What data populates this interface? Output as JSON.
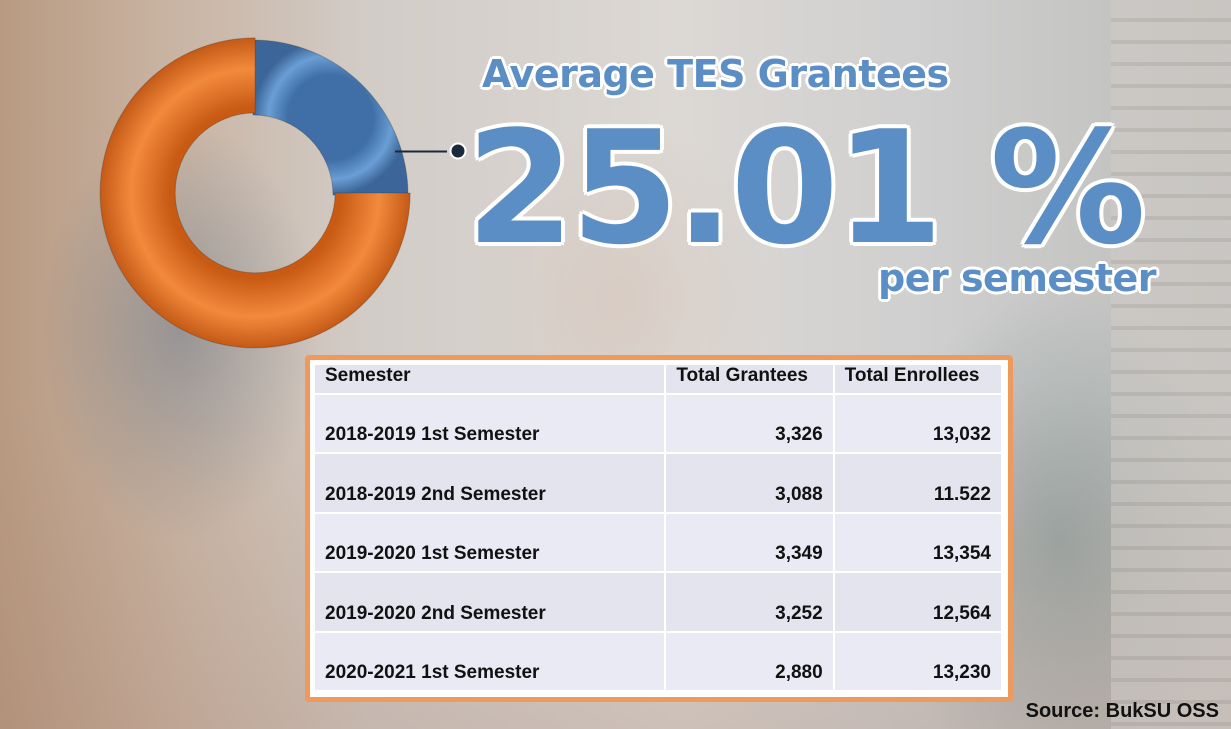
{
  "header": {
    "title": "Average TES Grantees",
    "percent": "25.01 %",
    "subtitle": "per semester"
  },
  "colors": {
    "grantees": "#5b8ec5",
    "non_grantees": "#ef7a2e",
    "table_border": "#ee9a5d"
  },
  "chart_data": [
    {
      "type": "pie",
      "variant": "donut",
      "slices": [
        {
          "value": 25.01,
          "color": "#5b8ec5"
        },
        {
          "value": 74.99,
          "color": "#ef7a2e"
        }
      ]
    },
    {
      "type": "table",
      "columns": [
        "Semester",
        "Total Grantees",
        "Total Enrollees"
      ],
      "rows": [
        [
          "2018-2019 1st Semester",
          "3,326",
          "13,032"
        ],
        [
          "2018-2019 2nd Semester",
          "3,088",
          "11.522"
        ],
        [
          "2019-2020 1st Semester",
          "3,349",
          "13,354"
        ],
        [
          "2019-2020 2nd Semester",
          "3,252",
          "12,564"
        ],
        [
          "2020-2021 1st Semester",
          "2,880",
          "13,230"
        ]
      ]
    }
  ],
  "footer": {
    "source": "Source: BukSU OSS"
  }
}
